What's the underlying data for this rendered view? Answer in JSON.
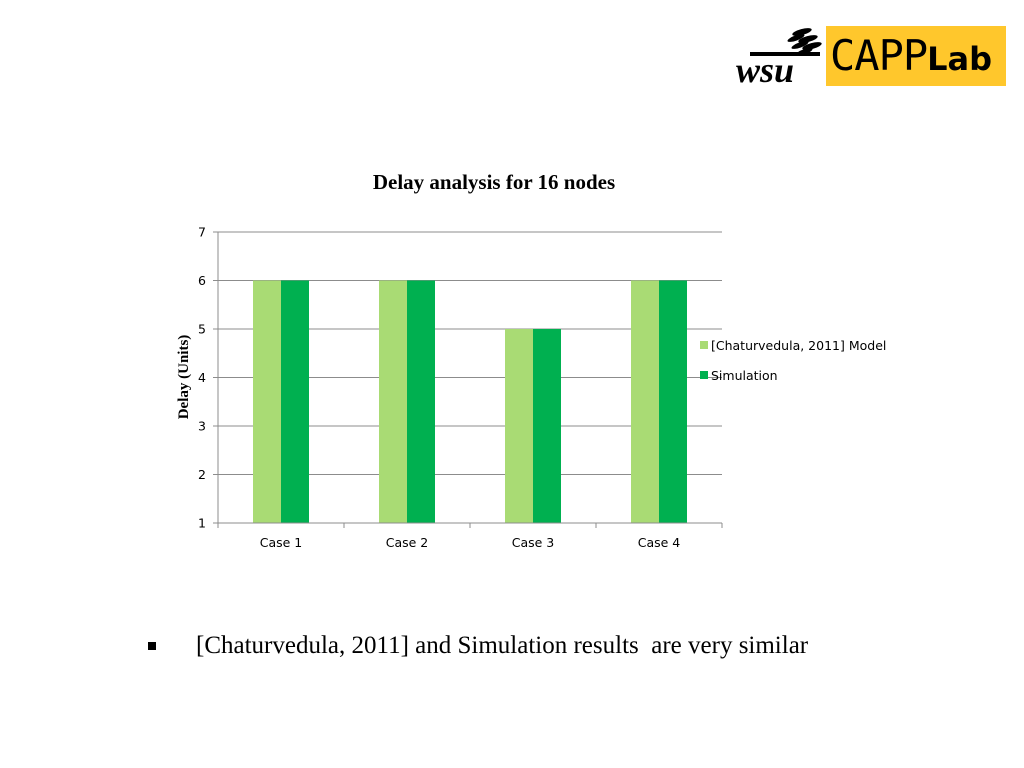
{
  "logo": {
    "mark": "wsu",
    "text_main": "CAPP",
    "text_sub": "Lab",
    "colors": {
      "accent": "#FFC72C",
      "mark": "#000000"
    }
  },
  "chart_data": {
    "type": "bar",
    "title": "Delay analysis for 16 nodes",
    "xlabel": "",
    "ylabel": "Delay (Units)",
    "categories": [
      "Case 1",
      "Case 2",
      "Case 3",
      "Case 4"
    ],
    "series": [
      {
        "name": "[Chaturvedula, 2011] Model",
        "values": [
          6,
          6,
          5,
          6
        ],
        "color": "#A9DB74"
      },
      {
        "name": "Simulation",
        "values": [
          6,
          6,
          5,
          6
        ],
        "color": "#00B050"
      }
    ],
    "ylim": [
      1,
      7
    ],
    "yticks": [
      1,
      2,
      3,
      4,
      5,
      6,
      7
    ],
    "grid": true,
    "legend_position": "right"
  },
  "bullet": {
    "text": "[Chaturvedula, 2011] and Simulation results  are very similar"
  }
}
